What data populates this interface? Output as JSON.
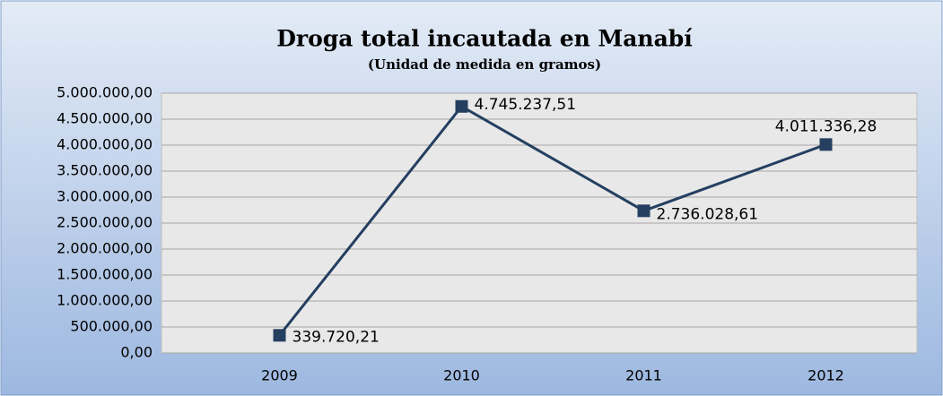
{
  "chart_data": {
    "type": "line",
    "title": "Droga total incautada en Manabí",
    "subtitle": "(Unidad de medida en gramos)",
    "categories": [
      "2009",
      "2010",
      "2011",
      "2012"
    ],
    "series": [
      {
        "name": "Droga total",
        "color": "#243f60",
        "values": [
          339720.21,
          4745237.51,
          2736028.61,
          4011336.28
        ],
        "value_labels": [
          "339.720,21",
          "4.745.237,51",
          "2.736.028,61",
          "4.011.336,28"
        ]
      }
    ],
    "ylim": [
      0,
      5000000
    ],
    "yticks": [
      {
        "value": 0,
        "label": "0,00"
      },
      {
        "value": 500000,
        "label": "500.000,00"
      },
      {
        "value": 1000000,
        "label": "1.000.000,00"
      },
      {
        "value": 1500000,
        "label": "1.500.000,00"
      },
      {
        "value": 2000000,
        "label": "2.000.000,00"
      },
      {
        "value": 2500000,
        "label": "2.500.000,00"
      },
      {
        "value": 3000000,
        "label": "3.000.000,00"
      },
      {
        "value": 3500000,
        "label": "3.500.000,00"
      },
      {
        "value": 4000000,
        "label": "4.000.000,00"
      },
      {
        "value": 4500000,
        "label": "4.500.000,00"
      },
      {
        "value": 5000000,
        "label": "5.000.000,00"
      }
    ],
    "grid": true
  }
}
